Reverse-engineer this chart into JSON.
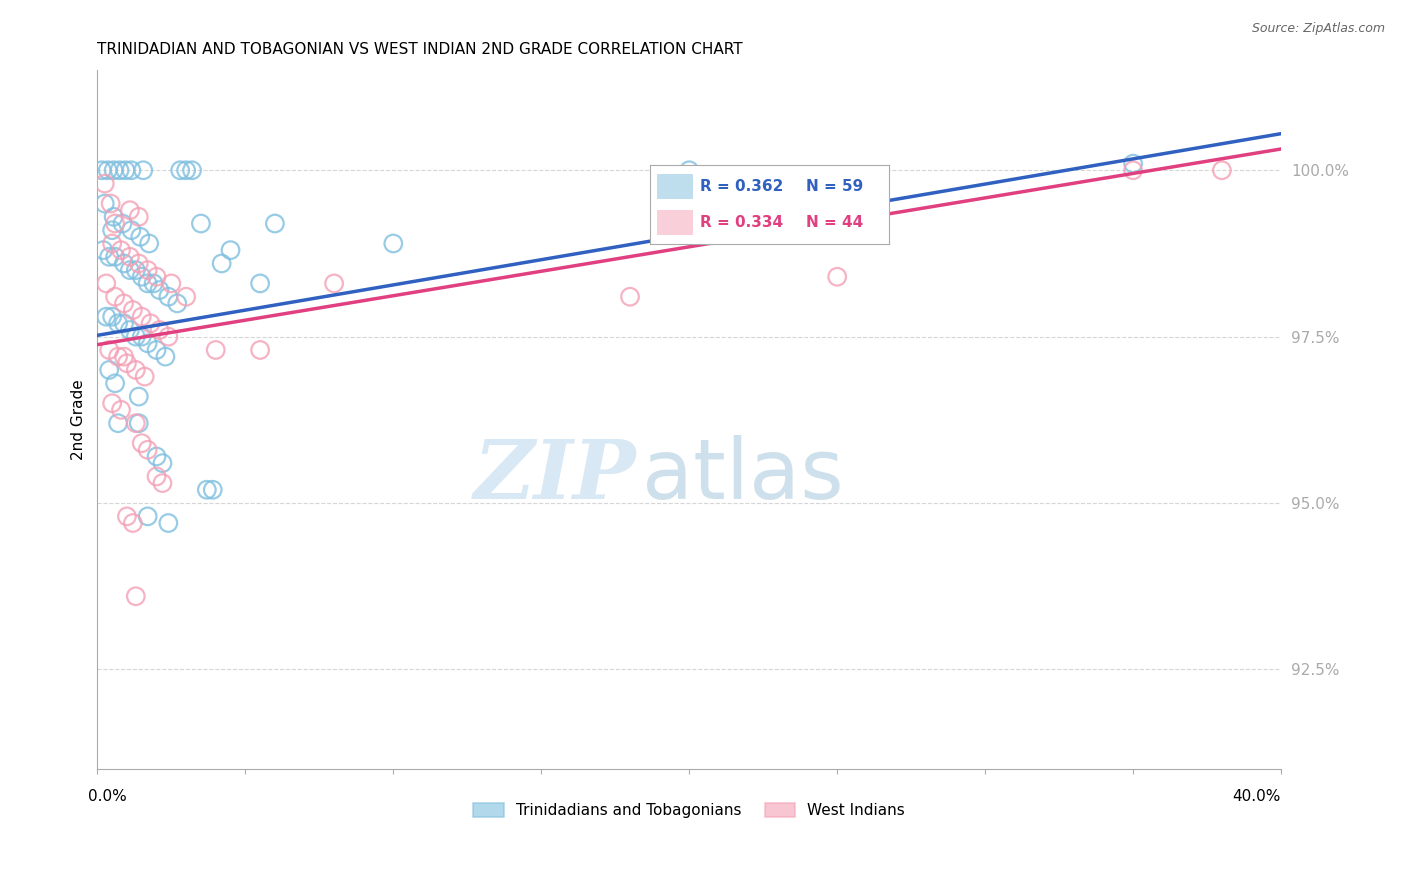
{
  "title": "TRINIDADIAN AND TOBAGONIAN VS WEST INDIAN 2ND GRADE CORRELATION CHART",
  "source": "Source: ZipAtlas.com",
  "ylabel": "2nd Grade",
  "yticks": [
    92.5,
    95.0,
    97.5,
    100.0
  ],
  "ytick_labels": [
    "92.5%",
    "95.0%",
    "97.5%",
    "100.0%"
  ],
  "xlim": [
    0.0,
    40.0
  ],
  "ylim": [
    91.0,
    101.5
  ],
  "blue_color": "#7fbfdf",
  "pink_color": "#f4a0b5",
  "blue_line_color": "#3060c0",
  "pink_line_color": "#e04080",
  "blue_line_x0": 0.0,
  "blue_line_y0": 97.52,
  "blue_line_x1": 40.0,
  "blue_line_y1": 100.55,
  "pink_line_x0": 0.0,
  "pink_line_y0": 97.38,
  "pink_line_x1": 40.0,
  "pink_line_y1": 100.32,
  "blue_scatter": [
    [
      0.15,
      100.0
    ],
    [
      0.35,
      100.0
    ],
    [
      0.55,
      100.0
    ],
    [
      0.75,
      100.0
    ],
    [
      0.95,
      100.0
    ],
    [
      1.15,
      100.0
    ],
    [
      1.55,
      100.0
    ],
    [
      2.8,
      100.0
    ],
    [
      3.0,
      100.0
    ],
    [
      3.2,
      100.0
    ],
    [
      0.25,
      99.5
    ],
    [
      0.55,
      99.3
    ],
    [
      0.85,
      99.2
    ],
    [
      1.15,
      99.1
    ],
    [
      1.45,
      99.0
    ],
    [
      1.75,
      98.9
    ],
    [
      0.2,
      98.8
    ],
    [
      0.4,
      98.7
    ],
    [
      0.6,
      98.7
    ],
    [
      0.9,
      98.6
    ],
    [
      1.1,
      98.5
    ],
    [
      1.3,
      98.5
    ],
    [
      1.5,
      98.4
    ],
    [
      1.7,
      98.3
    ],
    [
      1.9,
      98.3
    ],
    [
      2.1,
      98.2
    ],
    [
      2.4,
      98.1
    ],
    [
      2.7,
      98.0
    ],
    [
      0.3,
      97.8
    ],
    [
      0.5,
      97.8
    ],
    [
      0.7,
      97.7
    ],
    [
      0.9,
      97.7
    ],
    [
      1.1,
      97.6
    ],
    [
      1.3,
      97.5
    ],
    [
      1.5,
      97.5
    ],
    [
      1.7,
      97.4
    ],
    [
      2.0,
      97.3
    ],
    [
      3.5,
      99.2
    ],
    [
      4.5,
      98.8
    ],
    [
      6.0,
      99.2
    ],
    [
      5.5,
      98.3
    ],
    [
      0.4,
      97.0
    ],
    [
      0.6,
      96.8
    ],
    [
      1.4,
      96.6
    ],
    [
      2.0,
      95.7
    ],
    [
      2.2,
      95.6
    ],
    [
      3.7,
      95.2
    ],
    [
      3.9,
      95.2
    ],
    [
      0.7,
      96.2
    ],
    [
      1.7,
      94.8
    ],
    [
      2.4,
      94.7
    ],
    [
      20.0,
      100.0
    ],
    [
      35.0,
      100.1
    ],
    [
      10.0,
      98.9
    ],
    [
      1.4,
      96.2
    ],
    [
      2.3,
      97.2
    ],
    [
      0.5,
      99.1
    ],
    [
      4.2,
      98.6
    ]
  ],
  "pink_scatter": [
    [
      0.25,
      99.8
    ],
    [
      0.45,
      99.5
    ],
    [
      1.1,
      99.4
    ],
    [
      1.4,
      99.3
    ],
    [
      0.5,
      98.9
    ],
    [
      0.8,
      98.8
    ],
    [
      1.1,
      98.7
    ],
    [
      1.4,
      98.6
    ],
    [
      1.7,
      98.5
    ],
    [
      0.3,
      98.3
    ],
    [
      0.6,
      98.1
    ],
    [
      0.9,
      98.0
    ],
    [
      1.2,
      97.9
    ],
    [
      1.5,
      97.8
    ],
    [
      1.8,
      97.7
    ],
    [
      2.1,
      97.6
    ],
    [
      2.4,
      97.5
    ],
    [
      0.4,
      97.3
    ],
    [
      0.7,
      97.2
    ],
    [
      1.0,
      97.1
    ],
    [
      1.3,
      97.0
    ],
    [
      1.6,
      96.9
    ],
    [
      2.5,
      98.3
    ],
    [
      3.0,
      98.1
    ],
    [
      0.5,
      96.5
    ],
    [
      0.8,
      96.4
    ],
    [
      1.5,
      95.9
    ],
    [
      1.7,
      95.8
    ],
    [
      2.0,
      95.4
    ],
    [
      2.2,
      95.3
    ],
    [
      5.5,
      97.3
    ],
    [
      8.0,
      98.3
    ],
    [
      25.0,
      98.4
    ],
    [
      35.0,
      100.0
    ],
    [
      38.0,
      100.0
    ],
    [
      18.0,
      98.1
    ],
    [
      1.0,
      94.8
    ],
    [
      1.2,
      94.7
    ],
    [
      4.0,
      97.3
    ],
    [
      1.3,
      93.6
    ],
    [
      0.6,
      99.2
    ],
    [
      2.0,
      98.4
    ],
    [
      0.9,
      97.2
    ],
    [
      1.3,
      96.2
    ]
  ],
  "background_color": "#ffffff",
  "grid_color": "#cccccc"
}
